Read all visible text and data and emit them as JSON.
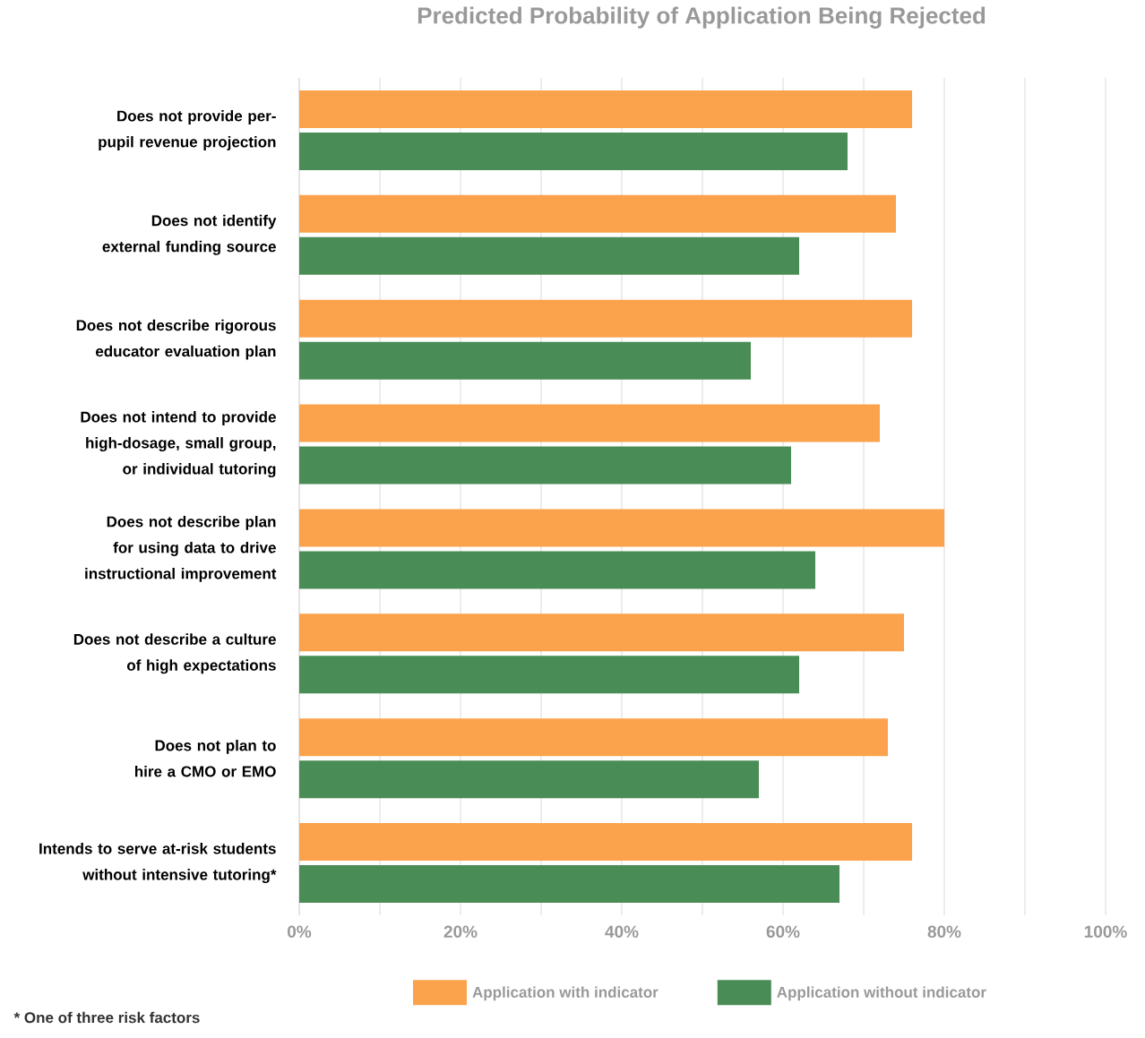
{
  "chart_data": {
    "type": "bar",
    "orientation": "horizontal",
    "title": "Predicted Probability of Application Being Rejected",
    "categories": [
      "Does not provide per-pupil revenue projection",
      "Does not identify external funding source",
      "Does not describe rigorous educator evaluation plan",
      "Does not intend to provide high-dosage, small group, or individual tutoring",
      "Does not describe plan for using data to drive instructional improvement",
      "Does not describe a culture of high expectations",
      "Does not plan to hire a CMO or EMO",
      "Intends to serve at-risk students without intensive tutoring*"
    ],
    "series": [
      {
        "name": "Application with indicator",
        "color": "#fba24c",
        "values": [
          76,
          74,
          76,
          72,
          80,
          75,
          73,
          76
        ]
      },
      {
        "name": "Application without indicator",
        "color": "#4a8c55",
        "values": [
          68,
          62,
          56,
          61,
          64,
          62,
          57,
          67
        ]
      }
    ],
    "xlim": [
      0,
      100
    ],
    "xticks": [
      {
        "value": 0,
        "label": "0%"
      },
      {
        "value": 10,
        "label": null
      },
      {
        "value": 20,
        "label": "20%"
      },
      {
        "value": 30,
        "label": null
      },
      {
        "value": 40,
        "label": "40%"
      },
      {
        "value": 50,
        "label": null
      },
      {
        "value": 60,
        "label": "60%"
      },
      {
        "value": 70,
        "label": null
      },
      {
        "value": 80,
        "label": "80%"
      },
      {
        "value": 90,
        "label": null
      },
      {
        "value": 100,
        "label": "100%"
      }
    ],
    "grid": "x",
    "legend": "bottom",
    "annotations": [
      "* One of three risk factors"
    ]
  }
}
